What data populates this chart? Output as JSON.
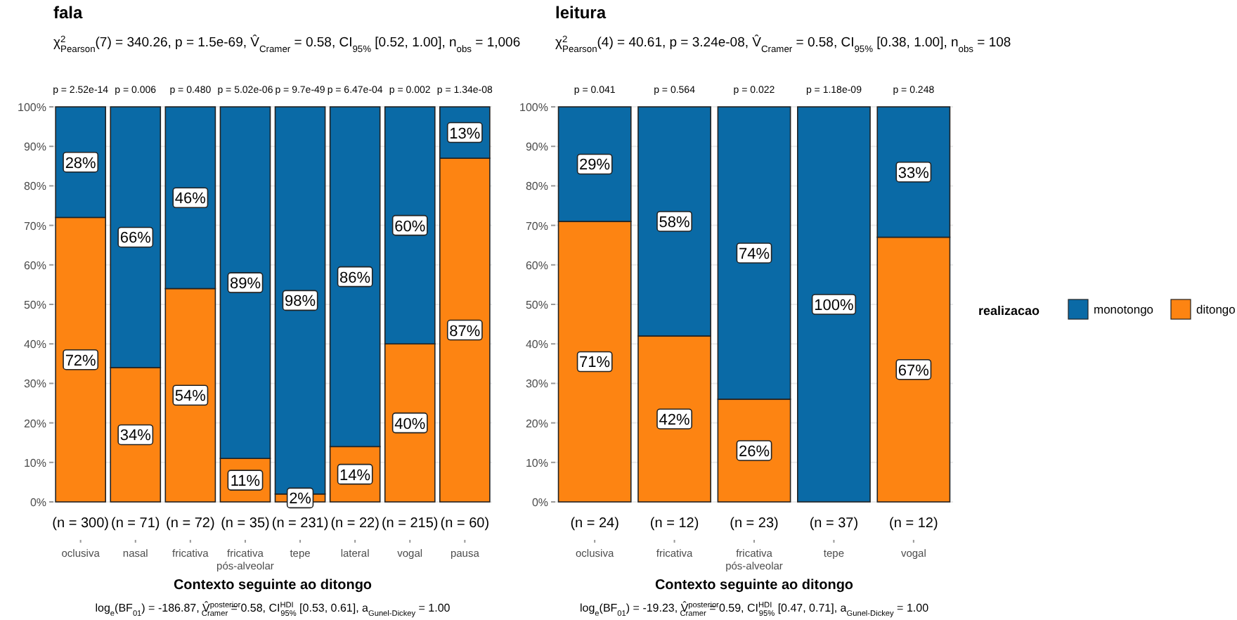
{
  "chart_data": [
    {
      "type": "bar",
      "title": "fala",
      "subtitle": "χ$^{2}$$_{Pearson}$(7) = 340.26, p = 1.5e-69, V̂$_{Cramer}$ = 0.58, CI$_{95%}$ [0.52, 1.00], n$_{obs}$ = 1,006",
      "xlabel": "Contexto seguinte ao ditongo",
      "categories": [
        "oclusiva",
        "nasal",
        "fricativa",
        "fricativa pós-alveolar",
        "tepe",
        "lateral",
        "vogal",
        "pausa"
      ],
      "stacked": true,
      "ylim": [
        0,
        100
      ],
      "yticks": [
        {
          "value": 0,
          "label": "0%"
        },
        {
          "value": 10,
          "label": "10%"
        },
        {
          "value": 20,
          "label": "20%"
        },
        {
          "value": 30,
          "label": "30%"
        },
        {
          "value": 40,
          "label": "40%"
        },
        {
          "value": 50,
          "label": "50%"
        },
        {
          "value": 60,
          "label": "60%"
        },
        {
          "value": 70,
          "label": "70%"
        },
        {
          "value": 80,
          "label": "80%"
        },
        {
          "value": 90,
          "label": "90%"
        },
        {
          "value": 100,
          "label": "100%"
        }
      ],
      "grid": "y",
      "legend": false,
      "series": [
        {
          "color": "#fd8412",
          "values": [
            72,
            34,
            54,
            11,
            2,
            14,
            40,
            87
          ],
          "value_labels": [
            "72%",
            "34%",
            "54%",
            "11%",
            "2%",
            "14%",
            "40%",
            "87%"
          ]
        },
        {
          "color": "#0a6aa6",
          "values": [
            28,
            66,
            46,
            89,
            98,
            86,
            60,
            13
          ],
          "value_labels": [
            "28%",
            "66%",
            "46%",
            "89%",
            "98%",
            "86%",
            "60%",
            "13%"
          ]
        }
      ],
      "annotations": [
        "p = 2.52e-14",
        "p = 0.006",
        "p = 0.480",
        "p = 5.02e-06",
        "p = 9.7e-49",
        "p = 6.47e-04",
        "p = 0.002",
        "p = 1.34e-08",
        "(n = 300)",
        "(n = 71)",
        "(n = 72)",
        "(n = 35)",
        "(n = 231)",
        "(n = 22)",
        "(n = 215)",
        "(n = 60)",
        "log$_{e}$(BF$_{01}$) = -186.87, V̂$^{posterior}$$_{Cramer}$ = 0.58, CI$^{HDI}$$_{95%}$ [0.53, 0.61], a$_{Gunel-Dickey}$ = 1.00"
      ]
    },
    {
      "type": "bar",
      "title": "leitura",
      "subtitle": "χ$^{2}$$_{Pearson}$(4) = 40.61, p = 3.24e-08, V̂$_{Cramer}$ = 0.58, CI$_{95%}$ [0.38, 1.00], n$_{obs}$ = 108",
      "xlabel": "Contexto seguinte ao ditongo",
      "categories": [
        "oclusiva",
        "fricativa",
        "fricativa pós-alveolar",
        "tepe",
        "vogal"
      ],
      "stacked": true,
      "ylim": [
        0,
        100
      ],
      "yticks": [
        {
          "value": 0,
          "label": "0%"
        },
        {
          "value": 10,
          "label": "10%"
        },
        {
          "value": 20,
          "label": "20%"
        },
        {
          "value": 30,
          "label": "30%"
        },
        {
          "value": 40,
          "label": "40%"
        },
        {
          "value": 50,
          "label": "50%"
        },
        {
          "value": 60,
          "label": "60%"
        },
        {
          "value": 70,
          "label": "70%"
        },
        {
          "value": 80,
          "label": "80%"
        },
        {
          "value": 90,
          "label": "90%"
        },
        {
          "value": 100,
          "label": "100%"
        }
      ],
      "grid": "y",
      "legend": "right",
      "legend_title": "realizacao",
      "series": [
        {
          "name": "ditongo",
          "color": "#fd8412",
          "values": [
            71,
            42,
            26,
            0,
            67
          ],
          "value_labels": [
            "71%",
            "42%",
            "26%",
            null,
            "67%"
          ]
        },
        {
          "name": "monotongo",
          "color": "#0a6aa6",
          "values": [
            29,
            58,
            74,
            100,
            33
          ],
          "value_labels": [
            "29%",
            "58%",
            "74%",
            "100%",
            "33%"
          ]
        }
      ],
      "annotations": [
        "p = 0.041",
        "p = 0.564",
        "p = 0.022",
        "p = 1.18e-09",
        "p = 0.248",
        "(n = 24)",
        "(n = 12)",
        "(n = 23)",
        "(n = 37)",
        "(n = 12)",
        "log$_{e}$(BF$_{01}$) = -19.23, V̂$^{posterior}$$_{Cramer}$ = 0.59, CI$^{HDI}$$_{95%}$ [0.47, 0.71], a$_{Gunel-Dickey}$ = 1.00"
      ]
    }
  ]
}
